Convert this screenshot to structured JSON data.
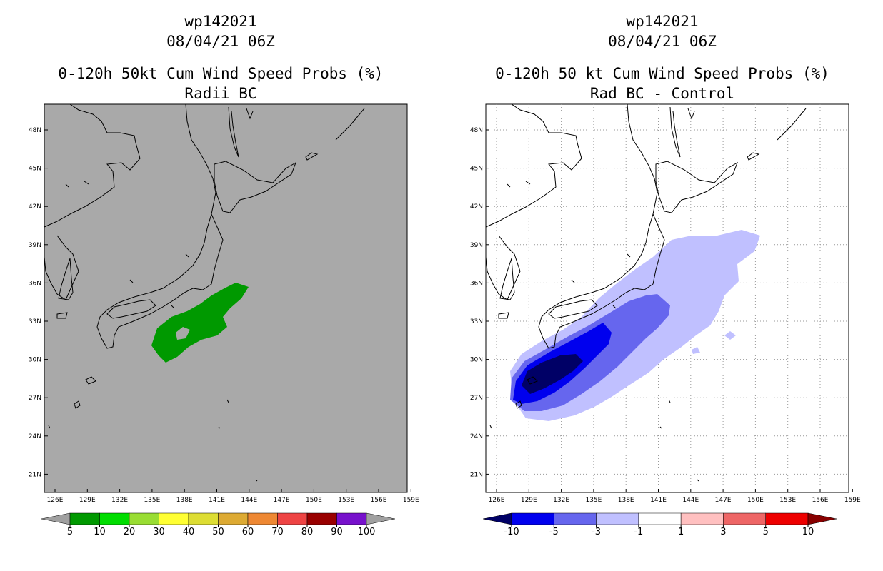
{
  "panels": [
    {
      "storm_id": "wp142021",
      "datetime": "08/04/21 06Z",
      "title": "0-120h 50kt Cum Wind Speed Probs (%)",
      "subtitle": "Radii BC",
      "background_color": "#a9a9a9",
      "lat_labels": [
        "48N",
        "45N",
        "42N",
        "39N",
        "36N",
        "33N",
        "30N",
        "27N",
        "24N",
        "21N"
      ],
      "lon_labels": [
        "126E",
        "129E",
        "132E",
        "135E",
        "138E",
        "141E",
        "144E",
        "147E",
        "150E",
        "153E",
        "156E",
        "159E"
      ],
      "colorbar": {
        "labels": [
          "5",
          "10",
          "20",
          "30",
          "40",
          "50",
          "60",
          "70",
          "80",
          "90",
          "100"
        ],
        "colors": [
          "#a0a0a0",
          "#009900",
          "#00dd00",
          "#99dd33",
          "#ffff33",
          "#dddd33",
          "#ddaa33",
          "#ee8833",
          "#ee4444",
          "#990000",
          "#7711cc",
          "#a0a0a0"
        ]
      }
    },
    {
      "storm_id": "wp142021",
      "datetime": "08/04/21 06Z",
      "title": "0-120h 50 kt Cum Wind Speed Probs (%)",
      "subtitle": "Rad BC - Control",
      "background_color": "#ffffff",
      "lat_labels": [
        "48N",
        "45N",
        "42N",
        "39N",
        "36N",
        "33N",
        "30N",
        "27N",
        "24N",
        "21N"
      ],
      "lon_labels": [
        "126E",
        "129E",
        "132E",
        "135E",
        "138E",
        "141E",
        "144E",
        "147E",
        "150E",
        "153E",
        "156E",
        "159E"
      ],
      "colorbar": {
        "labels": [
          "-10",
          "-5",
          "-3",
          "-1",
          "1",
          "3",
          "5",
          "10"
        ],
        "colors": [
          "#000066",
          "#0000ee",
          "#6666ee",
          "#c0c0ff",
          "#ffffff",
          "#ffc0c0",
          "#ee6666",
          "#ee0000",
          "#880000"
        ]
      }
    }
  ]
}
